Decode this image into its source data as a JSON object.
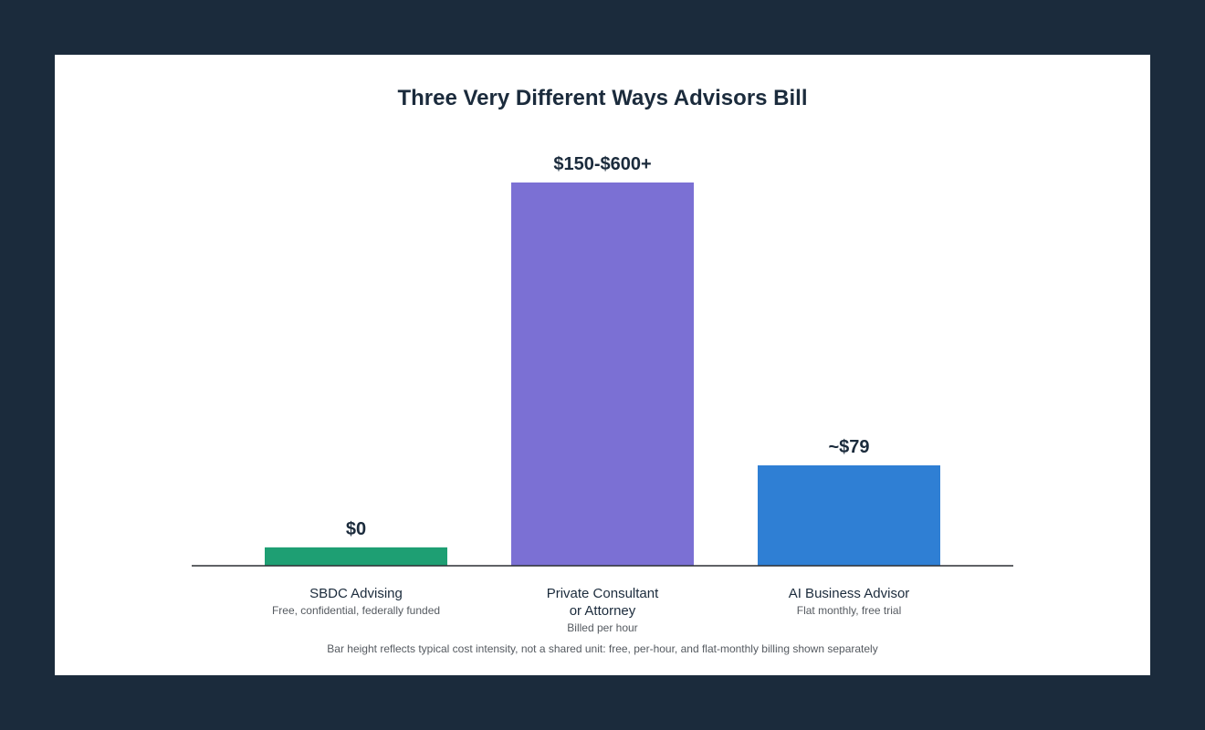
{
  "chart_data": {
    "type": "bar",
    "title": "Three Very Different Ways Advisors Bill",
    "xlabel": "",
    "ylabel": "",
    "grid": false,
    "legend": "none",
    "footnote": "Bar height reflects typical cost intensity, not a shared unit: free, per-hour, and flat-monthly billing shown separately",
    "categories": [
      {
        "name_lines": [
          "SBDC Advising"
        ],
        "subtitle": "Free, confidential, federally funded",
        "value_label": "$0",
        "relative_height": 0.048,
        "color": "#1e9f73"
      },
      {
        "name_lines": [
          "Private Consultant",
          "or Attorney"
        ],
        "subtitle": "Billed per hour",
        "value_label": "$150-$600+",
        "relative_height": 1.0,
        "color": "#7b70d4"
      },
      {
        "name_lines": [
          "AI Business Advisor"
        ],
        "subtitle": "Flat monthly, free trial",
        "value_label": "~$79",
        "relative_height": 0.262,
        "color": "#2f7fd4"
      }
    ]
  }
}
